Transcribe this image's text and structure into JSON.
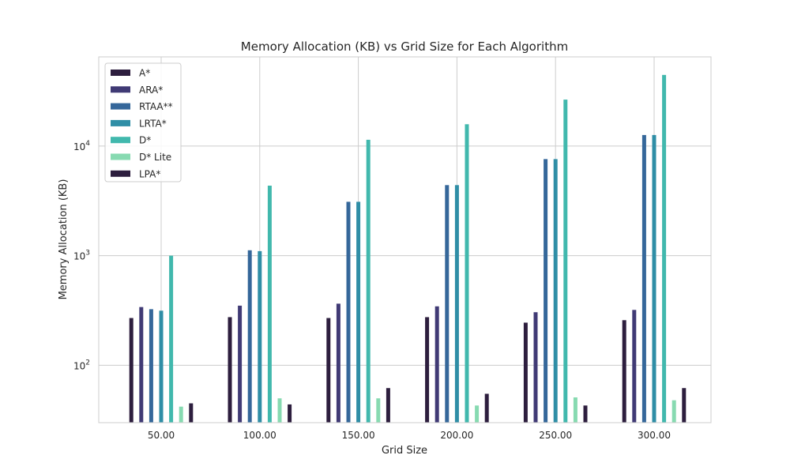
{
  "chart_data": {
    "type": "bar",
    "title": "Memory Allocation (KB) vs Grid Size for Each Algorithm",
    "xlabel": "Grid Size",
    "ylabel": "Memory Allocation (KB)",
    "yscale": "log",
    "ylim": [
      30,
      65000
    ],
    "grid": true,
    "legend_position": "top-left",
    "categories": [
      "50.00",
      "100.00",
      "150.00",
      "200.00",
      "250.00",
      "300.00"
    ],
    "yticks": [
      {
        "value": 100,
        "base": "10",
        "exp": "2"
      },
      {
        "value": 1000,
        "base": "10",
        "exp": "3"
      },
      {
        "value": 10000,
        "base": "10",
        "exp": "4"
      }
    ],
    "series": [
      {
        "name": "A*",
        "color": "#2d1e3e",
        "values": [
          270,
          275,
          270,
          275,
          245,
          258
        ]
      },
      {
        "name": "ARA*",
        "color": "#403a75",
        "values": [
          340,
          350,
          365,
          345,
          305,
          320
        ]
      },
      {
        "name": "RTAA**",
        "color": "#35679a",
        "values": [
          325,
          1120,
          3100,
          4400,
          7600,
          12600
        ]
      },
      {
        "name": "LRTA*",
        "color": "#2f8ea6",
        "values": [
          315,
          1100,
          3100,
          4400,
          7600,
          12600
        ]
      },
      {
        "name": "D*",
        "color": "#41b8ad",
        "values": [
          1000,
          4350,
          11400,
          15800,
          26500,
          44500
        ]
      },
      {
        "name": "D* Lite",
        "color": "#87dab1",
        "values": [
          42,
          50,
          50,
          43,
          51,
          48
        ]
      },
      {
        "name": "LPA*",
        "color": "#2d1e3e",
        "values": [
          45,
          44,
          62,
          55,
          43,
          62
        ]
      }
    ]
  }
}
